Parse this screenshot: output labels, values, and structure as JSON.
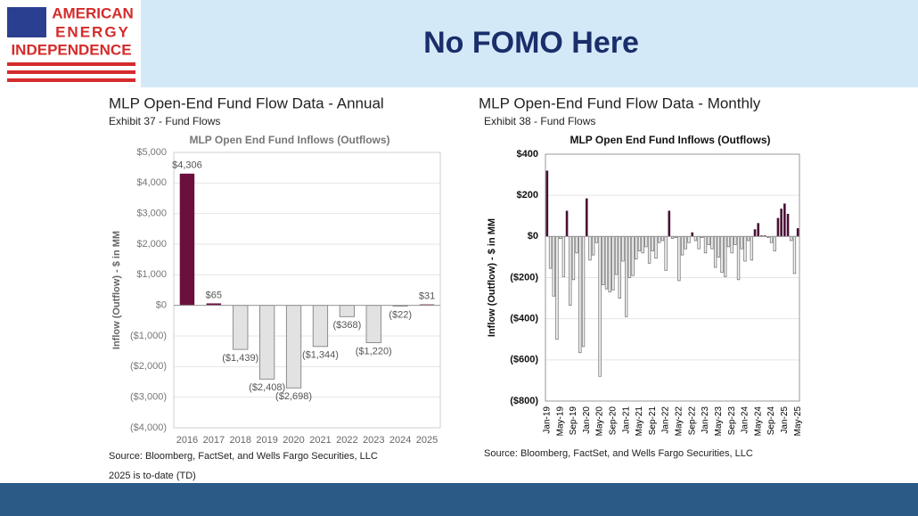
{
  "header": {
    "logo_lines": [
      "AMERICAN",
      "ENERGY",
      "INDEPENDENCE"
    ],
    "title": "No FOMO Here"
  },
  "chart_data": [
    {
      "type": "bar",
      "heading": "MLP Open-End Fund Flow Data - Annual",
      "subheading": "Exhibit 37 - Fund Flows",
      "title": "MLP Open End Fund Inflows (Outflows)",
      "y_label": "Inflow (Outflow) - $ in MM",
      "categories": [
        "2016",
        "2017",
        "2018",
        "2019",
        "2020",
        "2021",
        "2022",
        "2023",
        "2024",
        "2025"
      ],
      "values": [
        4306,
        65,
        -1439,
        -2408,
        -2698,
        -1344,
        -368,
        -1220,
        -22,
        31
      ],
      "value_labels": [
        "$4,306",
        "$65",
        "($1,439)",
        "($2,408)",
        "($2,698)",
        "($1,344)",
        "($368)",
        "($1,220)",
        "($22)",
        "$31"
      ],
      "ylim": [
        -4000,
        5000
      ],
      "yticks": [
        {
          "value": 5000,
          "label": "$5,000"
        },
        {
          "value": 4000,
          "label": "$4,000"
        },
        {
          "value": 3000,
          "label": "$3,000"
        },
        {
          "value": 2000,
          "label": "$2,000"
        },
        {
          "value": 1000,
          "label": "$1,000"
        },
        {
          "value": 0,
          "label": "$0"
        },
        {
          "value": -1000,
          "label": "($1,000)"
        },
        {
          "value": -2000,
          "label": "($2,000)"
        },
        {
          "value": -3000,
          "label": "($3,000)"
        },
        {
          "value": -4000,
          "label": "($4,000)"
        }
      ],
      "grid": true,
      "positive_color": "#6b0f3e",
      "negative_color": "#e2e2e2",
      "notes": [
        "Source: Bloomberg, FactSet, and Wells Fargo Securities, LLC",
        "2025 is to-date (TD)"
      ]
    },
    {
      "type": "bar",
      "heading": "MLP Open-End Fund Flow Data - Monthly",
      "subheading": "Exhibit 38 - Fund Flows",
      "title": "MLP Open End Fund Inflows (Outflows)",
      "y_label": "Inflow (Outflow) - $ in MM",
      "categories": [
        "Jan-19",
        null,
        null,
        null,
        "May-19",
        null,
        null,
        null,
        "Sep-19",
        null,
        null,
        null,
        "Jan-20",
        null,
        null,
        null,
        "May-20",
        null,
        null,
        null,
        "Sep-20",
        null,
        null,
        null,
        "Jan-21",
        null,
        null,
        null,
        "May-21",
        null,
        null,
        null,
        "Sep-21",
        null,
        null,
        null,
        "Jan-22",
        null,
        null,
        null,
        "May-22",
        null,
        null,
        null,
        "Sep-22",
        null,
        null,
        null,
        "Jan-23",
        null,
        null,
        null,
        "May-23",
        null,
        null,
        null,
        "Sep-23",
        null,
        null,
        null,
        "Jan-24",
        null,
        null,
        null,
        "May-24",
        null,
        null,
        null,
        "Sep-24",
        null,
        null,
        null,
        "Jan-25",
        null,
        null,
        null,
        "May-25"
      ],
      "values": [
        320,
        -155,
        -290,
        -500,
        -10,
        -195,
        125,
        -335,
        -210,
        -80,
        -565,
        -535,
        185,
        -115,
        -90,
        -30,
        -680,
        -235,
        -255,
        -270,
        -260,
        -185,
        -300,
        -120,
        -390,
        -200,
        -190,
        -110,
        -70,
        -80,
        -50,
        -130,
        -70,
        -105,
        -30,
        -20,
        -165,
        125,
        -10,
        -5,
        -215,
        -90,
        -60,
        -30,
        20,
        -20,
        -60,
        -5,
        -80,
        -40,
        -60,
        -150,
        -100,
        -175,
        -195,
        -50,
        -80,
        -40,
        -210,
        -60,
        -120,
        -20,
        -115,
        35,
        65,
        5,
        5,
        -5,
        -30,
        -70,
        90,
        135,
        160,
        110,
        -20,
        -180,
        40
      ],
      "ylim": [
        -800,
        400
      ],
      "yticks": [
        {
          "value": 400,
          "label": "$400"
        },
        {
          "value": 200,
          "label": "$200"
        },
        {
          "value": 0,
          "label": "$0"
        },
        {
          "value": -200,
          "label": "($200)"
        },
        {
          "value": -400,
          "label": "($400)"
        },
        {
          "value": -600,
          "label": "($600)"
        },
        {
          "value": -800,
          "label": "($800)"
        }
      ],
      "grid": true,
      "positive_color": "#4a0f35",
      "negative_color": "#f2f2f2",
      "notes": [
        "Source: Bloomberg, FactSet, and Wells Fargo Securities, LLC"
      ]
    }
  ]
}
